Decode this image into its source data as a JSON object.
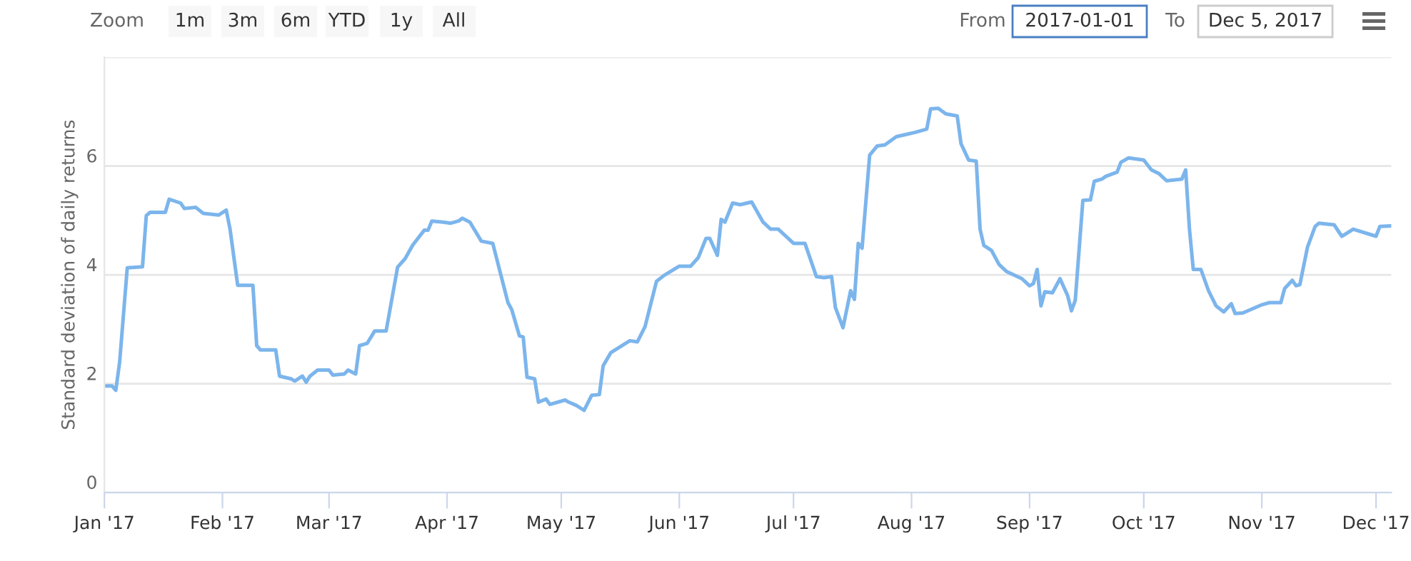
{
  "chart_data": {
    "type": "line",
    "ylabel": "Standard deviation of daily returns",
    "annotations": [
      "Zoom",
      "1m",
      "3m",
      "6m",
      "YTD",
      "1y",
      "All",
      "From",
      "2017-01-01",
      "To",
      "Dec 5, 2017"
    ],
    "x": [
      "2017-01-01",
      "2017-01-03",
      "2017-01-04",
      "2017-01-05",
      "2017-01-07",
      "2017-01-11",
      "2017-01-12",
      "2017-01-13",
      "2017-01-17",
      "2017-01-18",
      "2017-01-21",
      "2017-01-22",
      "2017-01-25",
      "2017-01-27",
      "2017-01-31",
      "2017-02-02",
      "2017-02-03",
      "2017-02-05",
      "2017-02-09",
      "2017-02-10",
      "2017-02-11",
      "2017-02-15",
      "2017-02-16",
      "2017-02-19",
      "2017-02-20",
      "2017-02-22",
      "2017-02-23",
      "2017-02-24",
      "2017-02-26",
      "2017-03-01",
      "2017-03-02",
      "2017-03-05",
      "2017-03-06",
      "2017-03-08",
      "2017-03-09",
      "2017-03-11",
      "2017-03-13",
      "2017-03-16",
      "2017-03-19",
      "2017-03-21",
      "2017-03-23",
      "2017-03-26",
      "2017-03-27",
      "2017-03-28",
      "2017-03-31",
      "2017-04-02",
      "2017-04-04",
      "2017-04-05",
      "2017-04-07",
      "2017-04-10",
      "2017-04-13",
      "2017-04-17",
      "2017-04-18",
      "2017-04-20",
      "2017-04-21",
      "2017-04-22",
      "2017-04-24",
      "2017-04-25",
      "2017-04-27",
      "2017-04-28",
      "2017-05-02",
      "2017-05-03",
      "2017-05-05",
      "2017-05-07",
      "2017-05-09",
      "2017-05-11",
      "2017-05-12",
      "2017-05-14",
      "2017-05-19",
      "2017-05-21",
      "2017-05-23",
      "2017-05-26",
      "2017-05-28",
      "2017-06-01",
      "2017-06-04",
      "2017-06-06",
      "2017-06-08",
      "2017-06-09",
      "2017-06-11",
      "2017-06-12",
      "2017-06-13",
      "2017-06-15",
      "2017-06-17",
      "2017-06-20",
      "2017-06-23",
      "2017-06-25",
      "2017-06-27",
      "2017-07-01",
      "2017-07-04",
      "2017-07-07",
      "2017-07-09",
      "2017-07-11",
      "2017-07-12",
      "2017-07-14",
      "2017-07-16",
      "2017-07-17",
      "2017-07-18",
      "2017-07-19",
      "2017-07-21",
      "2017-07-23",
      "2017-07-25",
      "2017-07-28",
      "2017-08-02",
      "2017-08-05",
      "2017-08-06",
      "2017-08-08",
      "2017-08-10",
      "2017-08-13",
      "2017-08-14",
      "2017-08-16",
      "2017-08-18",
      "2017-08-19",
      "2017-08-20",
      "2017-08-22",
      "2017-08-24",
      "2017-08-26",
      "2017-08-30",
      "2017-09-01",
      "2017-09-02",
      "2017-09-03",
      "2017-09-04",
      "2017-09-05",
      "2017-09-07",
      "2017-09-09",
      "2017-09-11",
      "2017-09-12",
      "2017-09-13",
      "2017-09-15",
      "2017-09-17",
      "2017-09-18",
      "2017-09-20",
      "2017-09-21",
      "2017-09-24",
      "2017-09-25",
      "2017-09-27",
      "2017-10-01",
      "2017-10-03",
      "2017-10-05",
      "2017-10-07",
      "2017-10-11",
      "2017-10-12",
      "2017-10-13",
      "2017-10-14",
      "2017-10-16",
      "2017-10-18",
      "2017-10-20",
      "2017-10-22",
      "2017-10-24",
      "2017-10-25",
      "2017-10-27",
      "2017-11-01",
      "2017-11-03",
      "2017-11-06",
      "2017-11-07",
      "2017-11-09",
      "2017-11-10",
      "2017-11-11",
      "2017-11-13",
      "2017-11-15",
      "2017-11-16",
      "2017-11-20",
      "2017-11-22",
      "2017-11-23",
      "2017-11-25",
      "2017-12-01",
      "2017-12-02",
      "2017-12-05"
    ],
    "series": [
      {
        "color": "#7cb5ec",
        "values": [
          1.96,
          1.96,
          1.88,
          2.4,
          4.13,
          4.15,
          5.09,
          5.15,
          5.15,
          5.39,
          5.32,
          5.22,
          5.24,
          5.13,
          5.1,
          5.19,
          4.84,
          3.81,
          3.81,
          2.7,
          2.62,
          2.62,
          2.14,
          2.09,
          2.05,
          2.14,
          2.03,
          2.14,
          2.25,
          2.25,
          2.16,
          2.18,
          2.25,
          2.18,
          2.7,
          2.74,
          2.97,
          2.97,
          4.14,
          4.3,
          4.55,
          4.82,
          4.82,
          4.99,
          4.97,
          4.95,
          4.99,
          5.04,
          4.97,
          4.62,
          4.58,
          3.49,
          3.36,
          2.88,
          2.86,
          2.12,
          2.09,
          1.66,
          1.72,
          1.62,
          1.7,
          1.66,
          1.6,
          1.51,
          1.79,
          1.8,
          2.33,
          2.57,
          2.79,
          2.77,
          3.05,
          3.88,
          3.99,
          4.16,
          4.16,
          4.32,
          4.67,
          4.67,
          4.36,
          5.02,
          4.97,
          5.32,
          5.29,
          5.34,
          4.97,
          4.84,
          4.84,
          4.58,
          4.58,
          3.97,
          3.95,
          3.97,
          3.4,
          3.03,
          3.71,
          3.55,
          4.58,
          4.49,
          6.2,
          6.37,
          6.39,
          6.54,
          6.62,
          6.68,
          7.05,
          7.06,
          6.96,
          6.92,
          6.41,
          6.11,
          6.09,
          4.84,
          4.54,
          4.45,
          4.19,
          4.06,
          3.93,
          3.8,
          3.84,
          4.1,
          3.43,
          3.69,
          3.67,
          3.93,
          3.62,
          3.34,
          3.53,
          5.37,
          5.38,
          5.72,
          5.76,
          5.81,
          5.89,
          6.07,
          6.15,
          6.11,
          5.93,
          5.86,
          5.73,
          5.76,
          5.93,
          4.84,
          4.1,
          4.1,
          3.71,
          3.43,
          3.32,
          3.47,
          3.29,
          3.3,
          3.45,
          3.49,
          3.49,
          3.75,
          3.9,
          3.8,
          3.82,
          4.51,
          4.89,
          4.95,
          4.92,
          4.71,
          4.75,
          4.84,
          4.71,
          4.89,
          4.9
        ]
      }
    ],
    "xlim": [
      "2017-01-01",
      "2017-12-05"
    ],
    "xticks": [
      {
        "value": "2017-01-01",
        "label": "Jan '17"
      },
      {
        "value": "2017-02-01",
        "label": "Feb '17"
      },
      {
        "value": "2017-03-01",
        "label": "Mar '17"
      },
      {
        "value": "2017-04-01",
        "label": "Apr '17"
      },
      {
        "value": "2017-05-01",
        "label": "May '17"
      },
      {
        "value": "2017-06-01",
        "label": "Jun '17"
      },
      {
        "value": "2017-07-01",
        "label": "Jul '17"
      },
      {
        "value": "2017-08-01",
        "label": "Aug '17"
      },
      {
        "value": "2017-09-01",
        "label": "Sep '17"
      },
      {
        "value": "2017-10-01",
        "label": "Oct '17"
      },
      {
        "value": "2017-11-01",
        "label": "Nov '17"
      },
      {
        "value": "2017-12-01",
        "label": "Dec '17"
      }
    ],
    "ylim": [
      0,
      8
    ],
    "yticks": [
      0,
      2,
      4,
      6,
      {
        "value": 8,
        "label": null
      }
    ],
    "grid": "y",
    "marker": "none",
    "line_style": "solid"
  }
}
